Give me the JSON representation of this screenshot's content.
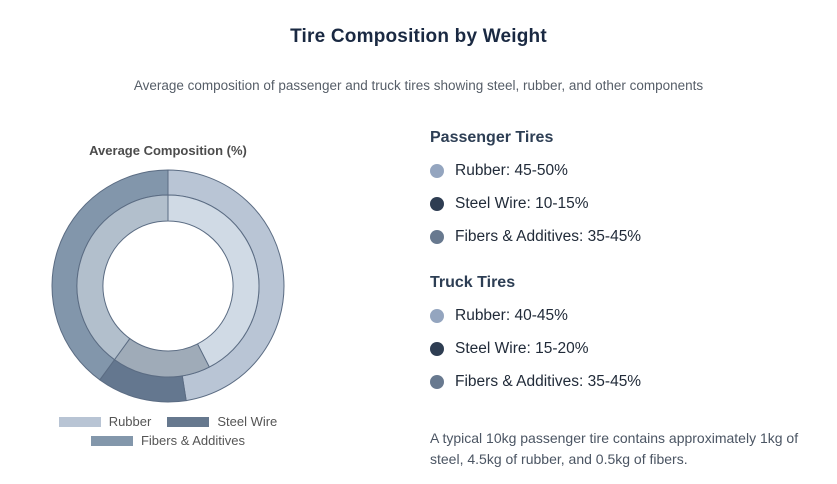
{
  "header": {
    "title": "Tire Composition by Weight",
    "subtitle": "Average composition of passenger and truck tires showing steel, rubber, and other components"
  },
  "chart_data": {
    "type": "pie",
    "variant": "nested-donut",
    "title": "Average Composition (%)",
    "unit": "%",
    "start": "top",
    "direction": "clockwise",
    "categories": [
      "Rubber",
      "Steel Wire",
      "Fibers & Additives"
    ],
    "series": [
      {
        "name": "Passenger Tires",
        "ring": "outer",
        "values": [
          47.5,
          12.5,
          40
        ],
        "colors": [
          "#b9c5d5",
          "#64778f",
          "#8296ab"
        ]
      },
      {
        "name": "Truck Tires",
        "ring": "inner",
        "values": [
          42.5,
          17.5,
          40
        ],
        "colors": [
          "#d0dae5",
          "#9fabb8",
          "#b2bfcc"
        ]
      }
    ],
    "stroke_color": "#5b6c83",
    "legend_position": "bottom",
    "legend": [
      {
        "label": "Rubber",
        "color": "#b8c4d4"
      },
      {
        "label": "Steel Wire",
        "color": "#66788e"
      },
      {
        "label": "Fibers & Additives",
        "color": "#8397ab"
      }
    ]
  },
  "info": {
    "sections": [
      {
        "heading": "Passenger Tires",
        "items": [
          {
            "label": "Rubber: 45-50%",
            "dot_color": "#94a5bf"
          },
          {
            "label": "Steel Wire: 10-15%",
            "dot_color": "#2e3d52"
          },
          {
            "label": "Fibers & Additives: 35-45%",
            "dot_color": "#68798f"
          }
        ]
      },
      {
        "heading": "Truck Tires",
        "items": [
          {
            "label": "Rubber: 40-45%",
            "dot_color": "#94a5bf"
          },
          {
            "label": "Steel Wire: 15-20%",
            "dot_color": "#2e3d52"
          },
          {
            "label": "Fibers & Additives: 35-45%",
            "dot_color": "#68798f"
          }
        ]
      }
    ],
    "footnote": "A typical 10kg passenger tire contains approximately 1kg of steel, 4.5kg of rubber, and 0.5kg of fibers."
  }
}
